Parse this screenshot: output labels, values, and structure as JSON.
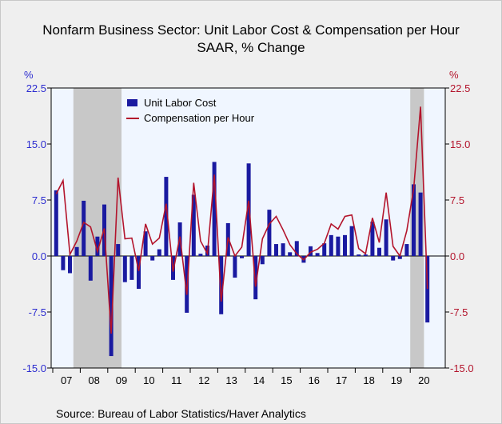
{
  "title_line1": "Nonfarm Business Sector: Unit Labor Cost & Compensation per Hour",
  "title_line2": "SAAR, % Change",
  "source": "Source:  Bureau of Labor Statistics/Haver Analytics",
  "colors": {
    "bars": "#1a1aa0",
    "line": "#b3142c",
    "recession": "#c8c8c8",
    "plot_bg": "#f0f6ff",
    "left_axis": "#2b2bd0",
    "right_axis": "#b3142c"
  },
  "chart_data": {
    "type": "bar+line",
    "left_unit": "%",
    "right_unit": "%",
    "ylim": [
      -15,
      22.5
    ],
    "yticks": [
      22.5,
      15.0,
      7.5,
      0.0,
      -7.5,
      -15.0
    ],
    "ytick_labels_left": [
      "22.5",
      "15.0",
      "7.5",
      "0.0",
      "-7.5",
      "-15.0"
    ],
    "ytick_labels_right": [
      "22.5",
      "15.0",
      "7.5",
      "0.0",
      "-7.5",
      "-15.0"
    ],
    "x_start_year": 2007,
    "x_end_year": 2020,
    "years": [
      "07",
      "08",
      "09",
      "10",
      "11",
      "12",
      "13",
      "14",
      "15",
      "16",
      "17",
      "18",
      "19",
      "20"
    ],
    "recessions": [
      {
        "start": "2007Q4",
        "end": "2009Q2"
      },
      {
        "start": "2020Q1",
        "end": "2020Q2"
      }
    ],
    "legend": [
      "Unit Labor Cost",
      "Compensation per Hour"
    ],
    "legend_position": "top-left",
    "quarters": [
      "2007Q1",
      "2007Q2",
      "2007Q3",
      "2007Q4",
      "2008Q1",
      "2008Q2",
      "2008Q3",
      "2008Q4",
      "2009Q1",
      "2009Q2",
      "2009Q3",
      "2009Q4",
      "2010Q1",
      "2010Q2",
      "2010Q3",
      "2010Q4",
      "2011Q1",
      "2011Q2",
      "2011Q3",
      "2011Q4",
      "2012Q1",
      "2012Q2",
      "2012Q3",
      "2012Q4",
      "2013Q1",
      "2013Q2",
      "2013Q3",
      "2013Q4",
      "2014Q1",
      "2014Q2",
      "2014Q3",
      "2014Q4",
      "2015Q1",
      "2015Q2",
      "2015Q3",
      "2015Q4",
      "2016Q1",
      "2016Q2",
      "2016Q3",
      "2016Q4",
      "2017Q1",
      "2017Q2",
      "2017Q3",
      "2017Q4",
      "2018Q1",
      "2018Q2",
      "2018Q3",
      "2018Q4",
      "2019Q1",
      "2019Q2",
      "2019Q3",
      "2019Q4",
      "2020Q1",
      "2020Q2",
      "2020Q3"
    ],
    "series": [
      {
        "name": "Unit Labor Cost",
        "kind": "bar",
        "values": [
          8.8,
          -1.9,
          -2.3,
          1.2,
          7.4,
          -3.3,
          2.6,
          6.9,
          -13.4,
          1.6,
          -3.5,
          -3.2,
          -4.4,
          3.3,
          -0.6,
          0.9,
          10.6,
          -3.2,
          4.5,
          -7.6,
          8.2,
          0.3,
          1.4,
          12.6,
          -7.8,
          4.4,
          -2.9,
          -0.3,
          12.4,
          -5.8,
          -1.1,
          6.2,
          1.6,
          1.7,
          0.5,
          2.0,
          -0.9,
          1.3,
          0.4,
          1.7,
          2.8,
          2.6,
          2.8,
          4.0,
          0.2,
          0.2,
          4.6,
          1.1,
          4.9,
          -0.6,
          -0.4,
          1.6,
          9.6,
          8.5,
          -8.9
        ]
      },
      {
        "name": "Compensation per Hour",
        "kind": "line",
        "values": [
          8.3,
          10.1,
          0.2,
          2.0,
          4.5,
          3.9,
          0.6,
          3.7,
          -10.4,
          10.5,
          2.3,
          2.4,
          -2.0,
          4.3,
          1.6,
          2.4,
          7.0,
          -2.1,
          2.6,
          -5.2,
          9.8,
          2.0,
          0.3,
          10.9,
          -6.1,
          2.5,
          0.0,
          1.2,
          7.4,
          -4.1,
          2.3,
          4.3,
          5.3,
          3.5,
          1.5,
          0.3,
          -0.5,
          0.5,
          0.9,
          1.7,
          4.3,
          3.6,
          5.3,
          5.5,
          1.0,
          0.3,
          5.1,
          1.8,
          8.5,
          1.3,
          0.0,
          3.4,
          9.0,
          20.0,
          -4.4
        ]
      }
    ]
  }
}
